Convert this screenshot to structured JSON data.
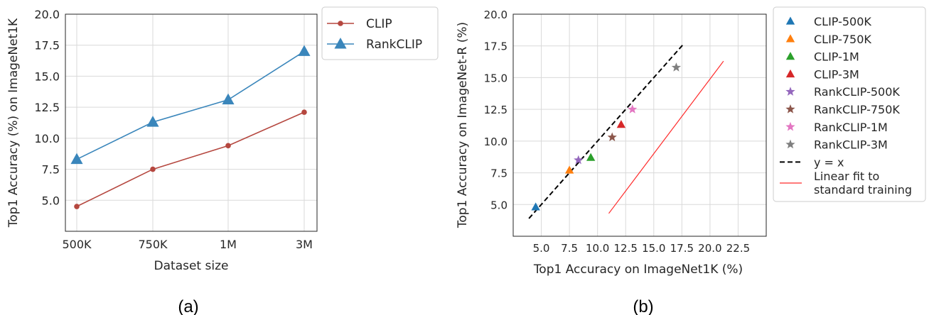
{
  "chart_data": [
    {
      "type": "line",
      "caption": "(a)",
      "xlabel": "Dataset size",
      "ylabel": "Top1 Accuracy (%) on ImageNet1K",
      "categories": [
        "500K",
        "750K",
        "1M",
        "3M"
      ],
      "ylim": [
        2.5,
        20.0
      ],
      "yticks": [
        "5.0",
        "7.5",
        "10.0",
        "12.5",
        "15.0",
        "17.5",
        "20.0"
      ],
      "grid": true,
      "legend_position": "outside-top-right",
      "series": [
        {
          "name": "CLIP",
          "values": [
            4.5,
            7.5,
            9.4,
            12.1
          ],
          "color": "#b5473f",
          "marker": "circle"
        },
        {
          "name": "RankCLIP",
          "values": [
            8.3,
            11.3,
            13.1,
            17.0
          ],
          "color": "#3a86bb",
          "marker": "triangle"
        }
      ]
    },
    {
      "type": "scatter",
      "caption": "(b)",
      "xlabel": "Top1 Accuracy on ImageNet1K (%)",
      "ylabel": "Top1 Accuracy on ImageNet-R (%)",
      "xlim": [
        2.5,
        25.0
      ],
      "ylim": [
        2.5,
        20.0
      ],
      "xticks": [
        "5.0",
        "7.5",
        "10.0",
        "12.5",
        "15.0",
        "17.5",
        "20.0",
        "22.5"
      ],
      "yticks": [
        "5.0",
        "7.5",
        "10.0",
        "12.5",
        "15.0",
        "17.5",
        "20.0"
      ],
      "grid": true,
      "legend_position": "outside-right",
      "points": [
        {
          "name": "CLIP-500K",
          "x": 4.5,
          "y": 4.8,
          "color": "#1f77b4",
          "marker": "triangle"
        },
        {
          "name": "CLIP-750K",
          "x": 7.5,
          "y": 7.7,
          "color": "#ff7f0e",
          "marker": "triangle"
        },
        {
          "name": "CLIP-1M",
          "x": 9.4,
          "y": 8.7,
          "color": "#2ca02c",
          "marker": "triangle"
        },
        {
          "name": "CLIP-3M",
          "x": 12.1,
          "y": 11.3,
          "color": "#d62728",
          "marker": "triangle"
        },
        {
          "name": "RankCLIP-500K",
          "x": 8.3,
          "y": 8.5,
          "color": "#9467bd",
          "marker": "star"
        },
        {
          "name": "RankCLIP-750K",
          "x": 11.3,
          "y": 10.3,
          "color": "#8c564b",
          "marker": "star"
        },
        {
          "name": "RankCLIP-1M",
          "x": 13.1,
          "y": 12.5,
          "color": "#e377c2",
          "marker": "star"
        },
        {
          "name": "RankCLIP-3M",
          "x": 17.0,
          "y": 15.8,
          "color": "#7f7f7f",
          "marker": "star"
        }
      ],
      "lines": [
        {
          "name": "y = x",
          "x": [
            3.9,
            17.6
          ],
          "y": [
            3.9,
            17.6
          ],
          "color": "#000000",
          "style": "dashed"
        },
        {
          "name": "Linear fit to standard training",
          "x": [
            11.0,
            21.2
          ],
          "y": [
            4.3,
            16.3
          ],
          "color": "#ff2a2a",
          "style": "solid"
        }
      ]
    }
  ]
}
